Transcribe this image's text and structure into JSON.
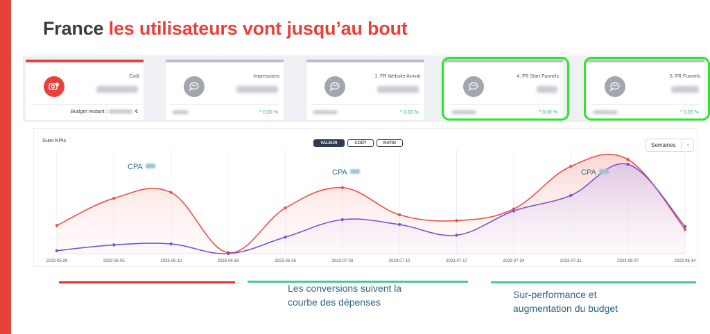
{
  "slide": {
    "title_part1": "France",
    "title_part2": "les utilisateurs vont jusqu’au bout",
    "accent_color": "#e8413c"
  },
  "kpi_cards": [
    {
      "title": "Coût",
      "icon": "money-icon",
      "budget_label": "Budget restant :",
      "budget_suffix": "€",
      "active": true
    },
    {
      "title": "Impressions",
      "icon": "chat-icon",
      "change": "0,00 %"
    },
    {
      "title": "1. FR Website Arrival",
      "icon": "chat-icon",
      "change": "0,00 %"
    },
    {
      "title": "4. FR Start Funnels",
      "icon": "chat-icon",
      "change": "0,00 %",
      "highlighted": true
    },
    {
      "title": "6. FR Funnels",
      "icon": "chat-icon",
      "change": "0,00 %",
      "highlighted": true
    }
  ],
  "chart_panel": {
    "title": "Suivi KPIs",
    "toggles": [
      "VALEUR",
      "COÛT",
      "RATIO"
    ],
    "selected_toggle": "VALEUR",
    "period": "Semaines",
    "cpa_labels": [
      "CPA",
      "CPA",
      "CPA"
    ]
  },
  "chart_data": {
    "type": "area",
    "x": [
      "2023-05-29",
      "2023-06-05",
      "2023-06-12",
      "2023-06-19",
      "2023-06-26",
      "2023-07-03",
      "2023-07-10",
      "2023-07-17",
      "2023-07-24",
      "2023-07-31",
      "2023-08-07",
      "2023-08-14"
    ],
    "series": [
      {
        "values": [
          29,
          57,
          63,
          1,
          47,
          68,
          40,
          34,
          46,
          90,
          97,
          25
        ],
        "color": "#ef4d45"
      },
      {
        "values": [
          3,
          9,
          10,
          0,
          17,
          35,
          30,
          19,
          44,
          60,
          92,
          28
        ],
        "color": "#7b52d6"
      }
    ],
    "ylim": [
      0,
      100
    ],
    "grid": true
  },
  "annotations": {
    "note1": "Les conversions suivent la courbe des dépenses",
    "note2": "Sur-performance et augmentation du budget",
    "line_colors": {
      "red": "#e3302b",
      "green": "#45c79a"
    }
  }
}
